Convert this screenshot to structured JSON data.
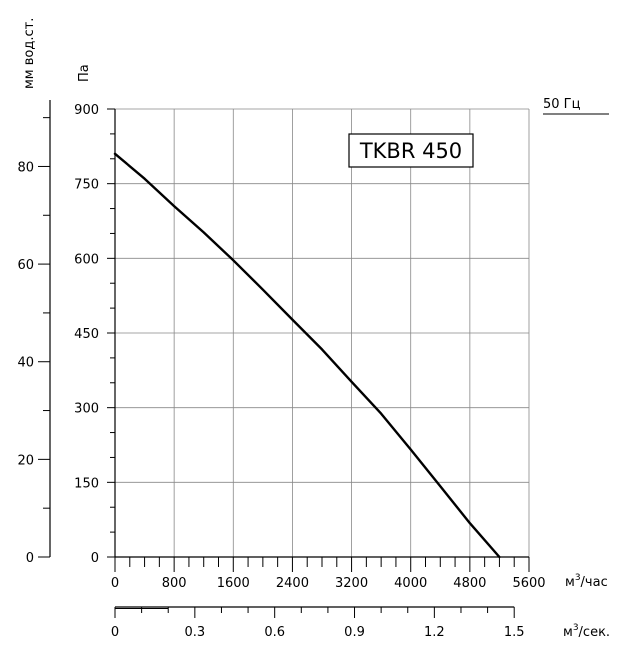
{
  "chart_data": {
    "type": "line",
    "title": "TKBR 450",
    "frequency_label": "50 Гц",
    "grid": true,
    "legend": "none",
    "x_axis": {
      "unit": "м³/час",
      "unit_base": "м",
      "unit_sup": "3",
      "unit_rest": "/час",
      "range": [
        0,
        5600
      ],
      "ticks": [
        0,
        800,
        1600,
        2400,
        3200,
        4000,
        4800,
        5600
      ],
      "tick_labels": [
        "0",
        "800",
        "1600",
        "2400",
        "3200",
        "4000",
        "4800",
        "5600"
      ]
    },
    "x_axis_secondary": {
      "unit": "м³/сек.",
      "unit_base": "м",
      "unit_sup": "3",
      "unit_rest": "/сек.",
      "range": [
        0,
        1.5556
      ],
      "ticks": [
        0,
        0.3,
        0.6,
        0.9,
        1.2,
        1.5
      ],
      "tick_labels": [
        "0",
        "0.3",
        "0.6",
        "0.9",
        "1.2",
        "1.5"
      ]
    },
    "y_axis": {
      "label": "Па",
      "range": [
        0,
        900
      ],
      "ticks": [
        0,
        150,
        300,
        450,
        600,
        750,
        900
      ],
      "tick_labels": [
        "0",
        "150",
        "300",
        "450",
        "600",
        "750",
        "900"
      ]
    },
    "y_axis_secondary": {
      "label": "мм вод.ст.",
      "range": [
        0,
        91.77
      ],
      "ticks": [
        0,
        20,
        40,
        60,
        80
      ],
      "tick_labels": [
        "0",
        "20",
        "40",
        "60",
        "80"
      ]
    },
    "series": [
      {
        "x": [
          0,
          400,
          800,
          1200,
          1600,
          2000,
          2400,
          2800,
          3200,
          3600,
          4000,
          4400,
          4800,
          5200
        ],
        "y": [
          810,
          760,
          705,
          652,
          596,
          537,
          477,
          417,
          352,
          288,
          216,
          142,
          68,
          0
        ]
      }
    ]
  }
}
